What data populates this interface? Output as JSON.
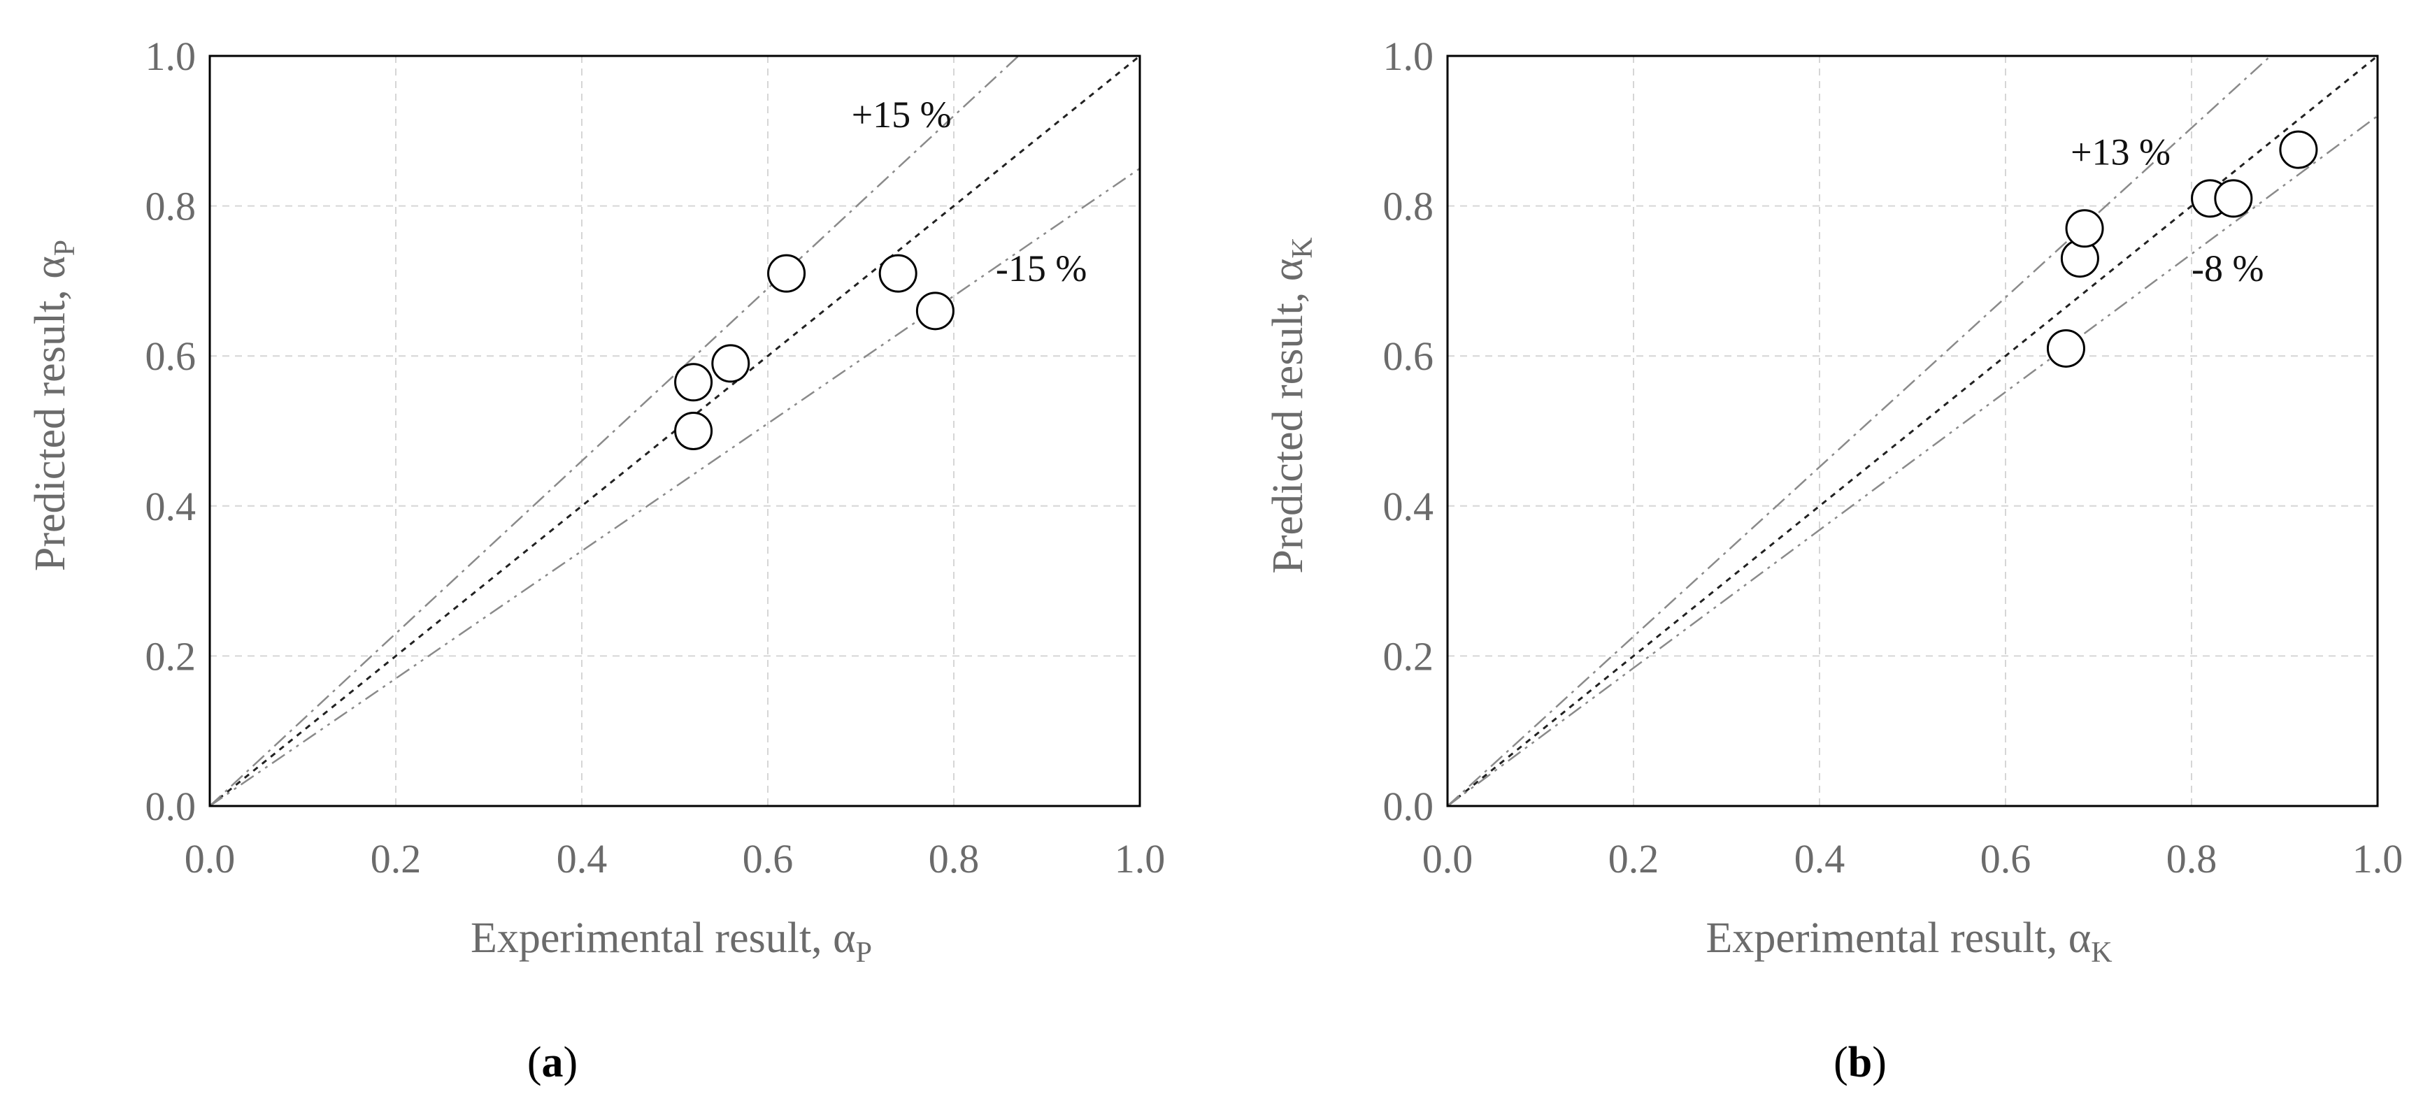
{
  "chart_data": [
    {
      "type": "scatter",
      "panel_label": "a",
      "xlabel": "Experimental result, α",
      "xlabel_sub": "P",
      "ylabel": "Predicted result, α",
      "ylabel_sub": "P",
      "xlim": [
        0.0,
        1.0
      ],
      "ylim": [
        0.0,
        1.0
      ],
      "xticks": [
        "0.0",
        "0.2",
        "0.4",
        "0.6",
        "0.8",
        "1.0"
      ],
      "yticks": [
        "0.0",
        "0.2",
        "0.4",
        "0.6",
        "0.8",
        "1.0"
      ],
      "grid": true,
      "points": [
        {
          "x": 0.52,
          "y": 0.565
        },
        {
          "x": 0.52,
          "y": 0.5
        },
        {
          "x": 0.56,
          "y": 0.59
        },
        {
          "x": 0.62,
          "y": 0.71
        },
        {
          "x": 0.74,
          "y": 0.71
        },
        {
          "x": 0.78,
          "y": 0.66
        }
      ],
      "reference_lines": [
        {
          "slope": 1.0
        },
        {
          "slope": 1.15,
          "label": "+15 %"
        },
        {
          "slope": 0.85,
          "label": "-15 %"
        }
      ]
    },
    {
      "type": "scatter",
      "panel_label": "b",
      "xlabel": "Experimental result, α",
      "xlabel_sub": "K",
      "ylabel": "Predicted result, α",
      "ylabel_sub": "K",
      "xlim": [
        0.0,
        1.0
      ],
      "ylim": [
        0.0,
        1.0
      ],
      "xticks": [
        "0.0",
        "0.2",
        "0.4",
        "0.6",
        "0.8",
        "1.0"
      ],
      "yticks": [
        "0.0",
        "0.2",
        "0.4",
        "0.6",
        "0.8",
        "1.0"
      ],
      "grid": true,
      "points": [
        {
          "x": 0.665,
          "y": 0.61
        },
        {
          "x": 0.68,
          "y": 0.73
        },
        {
          "x": 0.685,
          "y": 0.77
        },
        {
          "x": 0.82,
          "y": 0.81
        },
        {
          "x": 0.845,
          "y": 0.81
        },
        {
          "x": 0.915,
          "y": 0.875
        }
      ],
      "reference_lines": [
        {
          "slope": 1.0
        },
        {
          "slope": 1.13,
          "label": "+13 %"
        },
        {
          "slope": 0.92,
          "label": "-8 %"
        }
      ]
    }
  ]
}
